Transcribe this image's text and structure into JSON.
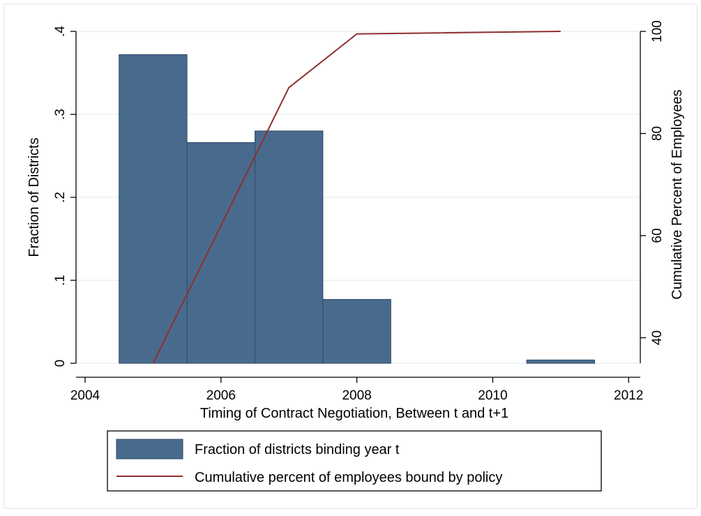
{
  "chart_data": {
    "type": "bar",
    "title": "",
    "xlabel": "Timing of Contract Negotiation, Between t and t+1",
    "ylabel": "Fraction of Districts",
    "y2label": "Cumulative Percent of Employees",
    "xlim": [
      2004,
      2012
    ],
    "ylim": [
      0,
      0.4
    ],
    "y2lim": [
      35,
      100
    ],
    "xticks": [
      "2004",
      "2006",
      "2008",
      "2010",
      "2012"
    ],
    "yticks": [
      "0",
      ".1",
      ".2",
      ".3",
      ".4"
    ],
    "y2ticks": [
      "40",
      "60",
      "80",
      "100"
    ],
    "grid": true,
    "legend_position": "bottom",
    "series": [
      {
        "name": "Fraction of districts binding year t",
        "type": "bar",
        "axis": "left",
        "color": "#486b8d",
        "bin_width": 1,
        "x": [
          2005,
          2006,
          2007,
          2008,
          2011
        ],
        "values": [
          0.372,
          0.266,
          0.28,
          0.077,
          0.004
        ]
      },
      {
        "name": "Cumulative percent of employees bound by policy",
        "type": "line",
        "axis": "right",
        "color": "#8f2f30",
        "x": [
          2005,
          2006,
          2007,
          2008,
          2011
        ],
        "values": [
          35,
          62,
          89,
          99.5,
          100
        ]
      }
    ]
  }
}
